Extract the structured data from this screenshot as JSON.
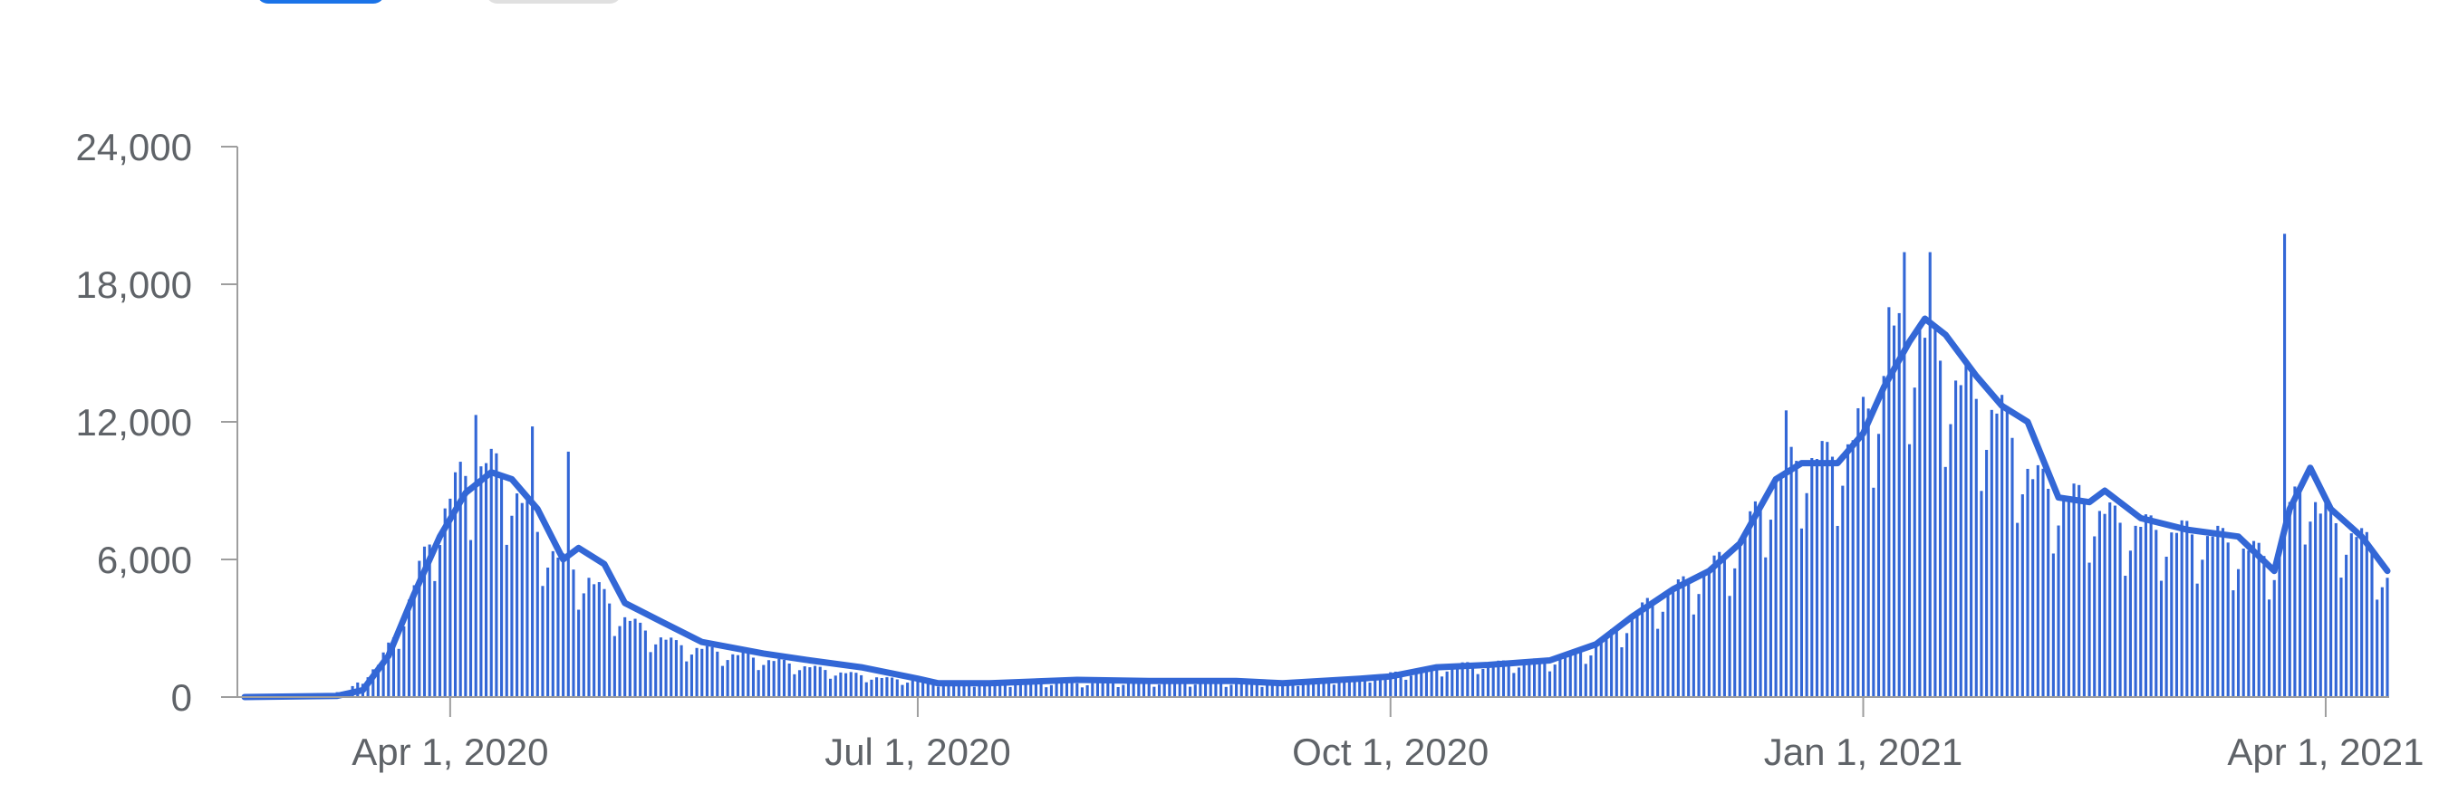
{
  "controls": {
    "left_pill_color": "#1a73e8",
    "right_pill_color": "#e0e0e0"
  },
  "chart_data": {
    "type": "bar",
    "overlay": "line",
    "title": "",
    "xlabel": "",
    "ylabel": "",
    "x_range": [
      "2020-02-21",
      "2021-04-13"
    ],
    "ylim": [
      0,
      24000
    ],
    "y_ticks": [
      {
        "value": 0,
        "label": "0"
      },
      {
        "value": 6000,
        "label": "6,000"
      },
      {
        "value": 12000,
        "label": "12,000"
      },
      {
        "value": 18000,
        "label": "18,000"
      },
      {
        "value": 24000,
        "label": "24,000"
      }
    ],
    "x_ticks": [
      {
        "date": "2020-04-01",
        "label": "Apr 1, 2020"
      },
      {
        "date": "2020-07-01",
        "label": "Jul 1, 2020"
      },
      {
        "date": "2020-10-01",
        "label": "Oct 1, 2020"
      },
      {
        "date": "2021-01-01",
        "label": "Jan 1, 2021"
      },
      {
        "date": "2021-04-01",
        "label": "Apr 1, 2021"
      }
    ],
    "grid": false,
    "color": "#3367d6",
    "daily_anchors": [
      [
        "2020-02-21",
        50
      ],
      [
        "2020-03-05",
        120
      ],
      [
        "2020-03-12",
        250
      ],
      [
        "2020-03-18",
        1400
      ],
      [
        "2020-03-22",
        3000
      ],
      [
        "2020-03-26",
        5500
      ],
      [
        "2020-03-30",
        7800
      ],
      [
        "2020-04-03",
        9500
      ],
      [
        "2020-04-08",
        10200
      ],
      [
        "2020-04-13",
        9300
      ],
      [
        "2020-04-18",
        7200
      ],
      [
        "2020-04-23",
        5800
      ],
      [
        "2020-04-28",
        5200
      ],
      [
        "2020-05-03",
        3800
      ],
      [
        "2020-05-08",
        3000
      ],
      [
        "2020-05-15",
        2300
      ],
      [
        "2020-05-25",
        1900
      ],
      [
        "2020-06-05",
        1500
      ],
      [
        "2020-06-15",
        1100
      ],
      [
        "2020-06-25",
        800
      ],
      [
        "2020-07-05",
        650
      ],
      [
        "2020-08-01",
        600
      ],
      [
        "2020-08-20",
        650
      ],
      [
        "2020-09-05",
        620
      ],
      [
        "2020-09-15",
        700
      ],
      [
        "2020-09-25",
        850
      ],
      [
        "2020-10-05",
        1100
      ],
      [
        "2020-10-15",
        1400
      ],
      [
        "2020-10-25",
        1500
      ],
      [
        "2020-11-01",
        1600
      ],
      [
        "2020-11-10",
        2200
      ],
      [
        "2020-11-20",
        4000
      ],
      [
        "2020-11-28",
        5000
      ],
      [
        "2020-12-05",
        6000
      ],
      [
        "2020-12-10",
        7500
      ],
      [
        "2020-12-15",
        9500
      ],
      [
        "2020-12-20",
        10500
      ],
      [
        "2020-12-25",
        10300
      ],
      [
        "2020-12-30",
        11200
      ],
      [
        "2021-01-04",
        13500
      ],
      [
        "2021-01-08",
        15500
      ],
      [
        "2021-01-12",
        16000
      ],
      [
        "2021-01-18",
        14000
      ],
      [
        "2021-01-23",
        13000
      ],
      [
        "2021-01-28",
        12200
      ],
      [
        "2021-02-03",
        9500
      ],
      [
        "2021-02-08",
        8800
      ],
      [
        "2021-02-13",
        8500
      ],
      [
        "2021-02-20",
        7600
      ],
      [
        "2021-03-01",
        7200
      ],
      [
        "2021-03-10",
        7000
      ],
      [
        "2021-03-18",
        6300
      ],
      [
        "2021-03-22",
        6000
      ],
      [
        "2021-03-26",
        8500
      ],
      [
        "2021-03-28",
        9500
      ],
      [
        "2021-03-31",
        8000
      ],
      [
        "2021-04-05",
        7300
      ],
      [
        "2021-04-10",
        6500
      ],
      [
        "2021-04-13",
        5200
      ]
    ],
    "daily_spikes": [
      [
        "2020-04-06",
        12300
      ],
      [
        "2020-04-17",
        11800
      ],
      [
        "2020-04-24",
        10700
      ],
      [
        "2020-12-17",
        12500
      ],
      [
        "2021-01-06",
        17000
      ],
      [
        "2021-01-09",
        19400
      ],
      [
        "2021-01-14",
        19400
      ],
      [
        "2021-03-24",
        20200
      ]
    ],
    "moving_average_anchors": [
      [
        "2020-02-21",
        0
      ],
      [
        "2020-03-10",
        50
      ],
      [
        "2020-03-15",
        300
      ],
      [
        "2020-03-20",
        1800
      ],
      [
        "2020-03-25",
        4500
      ],
      [
        "2020-03-30",
        7000
      ],
      [
        "2020-04-04",
        8900
      ],
      [
        "2020-04-09",
        9800
      ],
      [
        "2020-04-13",
        9500
      ],
      [
        "2020-04-18",
        8200
      ],
      [
        "2020-04-23",
        6000
      ],
      [
        "2020-04-26",
        6500
      ],
      [
        "2020-05-01",
        5800
      ],
      [
        "2020-05-05",
        4100
      ],
      [
        "2020-05-12",
        3300
      ],
      [
        "2020-05-20",
        2400
      ],
      [
        "2020-06-01",
        1900
      ],
      [
        "2020-06-10",
        1600
      ],
      [
        "2020-06-20",
        1300
      ],
      [
        "2020-07-01",
        800
      ],
      [
        "2020-07-05",
        600
      ],
      [
        "2020-07-15",
        600
      ],
      [
        "2020-08-01",
        750
      ],
      [
        "2020-08-15",
        700
      ],
      [
        "2020-09-01",
        700
      ],
      [
        "2020-09-10",
        600
      ],
      [
        "2020-09-25",
        800
      ],
      [
        "2020-10-01",
        900
      ],
      [
        "2020-10-10",
        1300
      ],
      [
        "2020-10-20",
        1400
      ],
      [
        "2020-11-01",
        1600
      ],
      [
        "2020-11-10",
        2300
      ],
      [
        "2020-11-17",
        3500
      ],
      [
        "2020-11-25",
        4700
      ],
      [
        "2020-12-02",
        5500
      ],
      [
        "2020-12-08",
        6700
      ],
      [
        "2020-12-15",
        9500
      ],
      [
        "2020-12-20",
        10200
      ],
      [
        "2020-12-27",
        10200
      ],
      [
        "2021-01-01",
        11500
      ],
      [
        "2021-01-05",
        13500
      ],
      [
        "2021-01-10",
        15500
      ],
      [
        "2021-01-13",
        16500
      ],
      [
        "2021-01-17",
        15800
      ],
      [
        "2021-01-23",
        14000
      ],
      [
        "2021-01-28",
        12700
      ],
      [
        "2021-02-02",
        12000
      ],
      [
        "2021-02-08",
        8700
      ],
      [
        "2021-02-14",
        8500
      ],
      [
        "2021-02-17",
        9000
      ],
      [
        "2021-02-24",
        7800
      ],
      [
        "2021-03-05",
        7300
      ],
      [
        "2021-03-15",
        7000
      ],
      [
        "2021-03-22",
        5500
      ],
      [
        "2021-03-25",
        8200
      ],
      [
        "2021-03-29",
        10000
      ],
      [
        "2021-04-02",
        8200
      ],
      [
        "2021-04-08",
        7000
      ],
      [
        "2021-04-13",
        5500
      ]
    ]
  }
}
